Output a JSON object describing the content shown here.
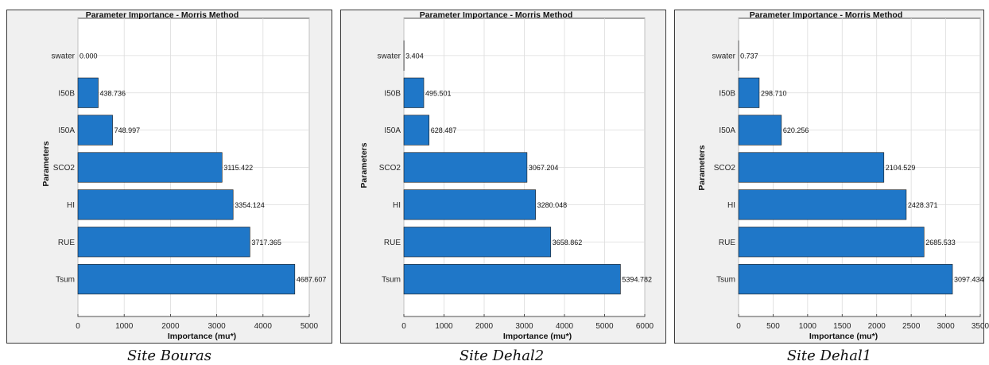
{
  "chart_data": [
    {
      "type": "bar",
      "orientation": "horizontal",
      "title": "Parameter Importance - Morris Method",
      "xlabel": "Importance (mu*)",
      "ylabel": "Parameters",
      "categories": [
        "swater",
        "I50B",
        "I50A",
        "SCO2",
        "HI",
        "RUE",
        "Tsum"
      ],
      "values": [
        0.0,
        438.736,
        748.997,
        3115.422,
        3354.124,
        3717.365,
        4687.607
      ],
      "value_labels": [
        "0.000",
        "438.736",
        "748.997",
        "3115.422",
        "3354.124",
        "3717.365",
        "4687.607"
      ],
      "xlim": [
        0,
        5000
      ],
      "xticks": [
        0,
        1000,
        2000,
        3000,
        4000,
        5000
      ],
      "grid": true,
      "bar_color": "#1f77c8",
      "caption": "Site Bouras"
    },
    {
      "type": "bar",
      "orientation": "horizontal",
      "title": "Parameter Importance - Morris Method",
      "xlabel": "Importance (mu*)",
      "ylabel": "Parameters",
      "categories": [
        "swater",
        "I50B",
        "I50A",
        "SCO2",
        "HI",
        "RUE",
        "Tsum"
      ],
      "values": [
        3.404,
        495.501,
        628.487,
        3067.204,
        3280.048,
        3658.862,
        5394.782
      ],
      "value_labels": [
        "3.404",
        "495.501",
        "628.487",
        "3067.204",
        "3280.048",
        "3658.862",
        "5394.782"
      ],
      "xlim": [
        0,
        6000
      ],
      "xticks": [
        0,
        1000,
        2000,
        3000,
        4000,
        5000,
        6000
      ],
      "grid": true,
      "bar_color": "#1f77c8",
      "caption": "Site Dehal2"
    },
    {
      "type": "bar",
      "orientation": "horizontal",
      "title": "Parameter Importance - Morris Method",
      "xlabel": "Importance (mu*)",
      "ylabel": "Parameters",
      "categories": [
        "swater",
        "I50B",
        "I50A",
        "SCO2",
        "HI",
        "RUE",
        "Tsum"
      ],
      "values": [
        0.737,
        298.71,
        620.256,
        2104.529,
        2428.371,
        2685.533,
        3097.434
      ],
      "value_labels": [
        "0.737",
        "298.710",
        "620.256",
        "2104.529",
        "2428.371",
        "2685.533",
        "3097.434"
      ],
      "xlim": [
        0,
        3500
      ],
      "xticks": [
        0,
        500,
        1000,
        1500,
        2000,
        2500,
        3000,
        3500
      ],
      "grid": true,
      "bar_color": "#1f77c8",
      "caption": "Site Dehal1"
    }
  ]
}
